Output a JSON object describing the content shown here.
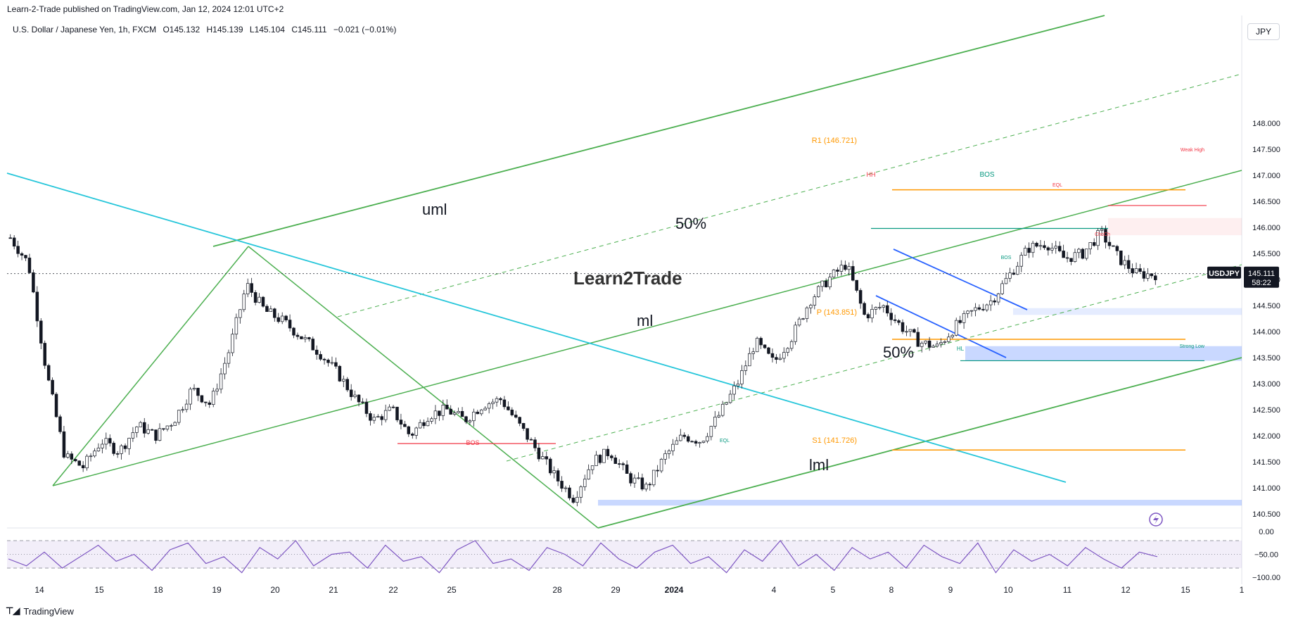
{
  "header": {
    "published": "Learn-2-Trade published on TradingView.com, Jan 12, 2024 12:01 UTC+2"
  },
  "symbol": {
    "name": "U.S. Dollar / Japanese Yen, 1h, FXCM",
    "open": "O145.132",
    "high": "H145.139",
    "low": "L145.104",
    "close": "C145.111",
    "change": "−0.021 (−0.01%)"
  },
  "currency_button": "JPY",
  "price_tag": {
    "symbol": "USDJPY",
    "price": "145.111",
    "countdown": "58:22"
  },
  "watermark": "Learn2Trade",
  "footer": {
    "brand": "TradingView"
  },
  "colors": {
    "up": "#131722",
    "down": "#131722",
    "green_line": "#4caf50",
    "cyan_line": "#26c6da",
    "blue_channel": "#2962ff",
    "orange": "#ff9800",
    "red": "#f23645",
    "teal": "#089981",
    "rsi": "#7e57c2"
  },
  "chart_data": [
    {
      "type": "candlestick",
      "title": "U.S. Dollar / Japanese Yen, 1h, FXCM",
      "y_axis": {
        "ticks": [
          148.0,
          147.5,
          147.0,
          146.5,
          146.0,
          145.5,
          145.0,
          144.5,
          144.0,
          143.5,
          143.0,
          142.5,
          142.0,
          141.5,
          141.0,
          140.5
        ],
        "range": [
          140.2,
          148.6
        ]
      },
      "x_axis": {
        "ticks": [
          "14",
          "15",
          "18",
          "19",
          "20",
          "21",
          "22",
          "25",
          "28",
          "29",
          "2024",
          "4",
          "5",
          "8",
          "9",
          "10",
          "11",
          "12",
          "15",
          "1"
        ]
      },
      "last_price": 145.111,
      "approx_closes": [
        145.8,
        145.3,
        143.2,
        141.6,
        141.4,
        141.9,
        141.7,
        142.2,
        142.0,
        142.3,
        142.9,
        142.6,
        143.6,
        144.9,
        144.4,
        144.2,
        143.9,
        143.6,
        143.2,
        142.7,
        142.3,
        142.5,
        142.0,
        142.4,
        142.5,
        142.3,
        142.6,
        142.7,
        142.2,
        141.7,
        141.2,
        140.8,
        141.5,
        141.7,
        141.2,
        141.0,
        141.6,
        142.0,
        141.9,
        142.4,
        143.0,
        143.8,
        143.4,
        143.9,
        144.6,
        145.0,
        145.3,
        144.3,
        144.5,
        144.1,
        143.8,
        143.7,
        144.1,
        144.4,
        144.6,
        145.1,
        145.6,
        145.7,
        145.4,
        145.5,
        145.9,
        145.4,
        145.1,
        145.1
      ],
      "annotations": [
        {
          "text": "uml"
        },
        {
          "text": "ml"
        },
        {
          "text": "lml"
        },
        {
          "text": "50%"
        },
        {
          "text": "50%"
        },
        {
          "text": "R1 (146.721)",
          "value": 146.721
        },
        {
          "text": "P (143.851)",
          "value": 143.851
        },
        {
          "text": "S1 (141.726)",
          "value": 141.726
        },
        {
          "text": "BOS"
        },
        {
          "text": "BOS"
        },
        {
          "text": "BOS"
        },
        {
          "text": "HH"
        },
        {
          "text": "HL"
        },
        {
          "text": "EQL"
        },
        {
          "text": "EQL"
        },
        {
          "text": "ChoCh"
        },
        {
          "text": "Weak High"
        },
        {
          "text": "Strong Low"
        }
      ]
    },
    {
      "type": "line",
      "title": "",
      "y_axis": {
        "ticks": [
          "0.00",
          "−50.00",
          "−100.00"
        ],
        "range": [
          -100,
          0
        ]
      },
      "levels": [
        -20,
        -50,
        -80
      ],
      "values": [
        -60,
        -75,
        -45,
        -80,
        -55,
        -30,
        -65,
        -50,
        -85,
        -40,
        -25,
        -70,
        -55,
        -90,
        -35,
        -60,
        -20,
        -75,
        -50,
        -45,
        -80,
        -30,
        -65,
        -55,
        -90,
        -40,
        -20,
        -70,
        -60,
        -85,
        -35,
        -50,
        -75,
        -25,
        -60,
        -80,
        -45,
        -30,
        -70,
        -55,
        -90,
        -40,
        -65,
        -20,
        -75,
        -50,
        -85,
        -35,
        -60,
        -45,
        -80,
        -30,
        -55,
        -70,
        -25,
        -90,
        -40,
        -65,
        -50,
        -75,
        -35,
        -60,
        -80,
        -45,
        -55
      ]
    }
  ]
}
